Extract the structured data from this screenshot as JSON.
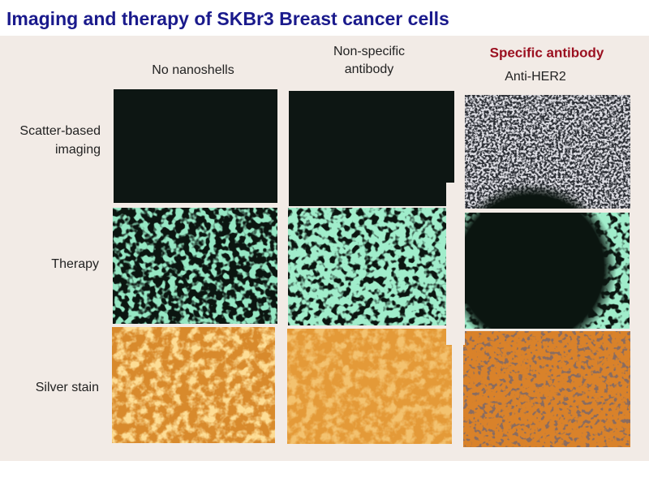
{
  "title": "Imaging and therapy of SKBr3 Breast cancer cells",
  "columns": [
    {
      "lines": [
        "No nanoshells"
      ]
    },
    {
      "lines": [
        "Non-specific",
        "antibody"
      ]
    },
    {
      "lines": [
        "Specific antibody"
      ],
      "sublabel": "Anti-HER2"
    }
  ],
  "rows": [
    {
      "lines": [
        "Scatter-based",
        "imaging"
      ]
    },
    {
      "lines": [
        "Therapy"
      ]
    },
    {
      "lines": [
        "Silver stain"
      ]
    }
  ]
}
